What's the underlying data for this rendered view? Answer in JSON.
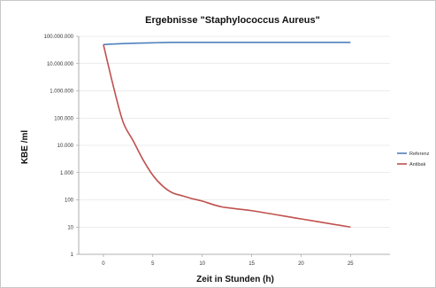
{
  "chart_data": {
    "type": "line",
    "title": "Ergebnisse \"Staphylococcus Aureus\"",
    "xlabel": "Zeit in Stunden (h)",
    "ylabel": "KBE /ml",
    "xlim": [
      -2.5,
      29
    ],
    "ylim": [
      1,
      100000000
    ],
    "yscale": "log",
    "x_ticks": [
      "0",
      "5",
      "10",
      "15",
      "20",
      "25"
    ],
    "y_ticks": [
      "1",
      "10",
      "100",
      "1.000",
      "10.000",
      "100.000",
      "1.000.000",
      "10.000.000",
      "100.000.000"
    ],
    "grid": "horizontal",
    "legend_position": "right",
    "series": [
      {
        "name": "Referenz",
        "color": "#4f81bd",
        "x": [
          0,
          2,
          5,
          7,
          10,
          15,
          20,
          25
        ],
        "y": [
          50000000,
          54000000,
          58000000,
          60000000,
          60000000,
          60000000,
          60000000,
          60000000
        ]
      },
      {
        "name": "Antibak",
        "color": "#c0504d",
        "x": [
          0,
          1,
          2,
          3,
          4,
          5,
          6,
          7,
          8,
          9,
          10,
          12,
          15,
          20,
          25
        ],
        "y": [
          50000000,
          1500000,
          70000,
          15000,
          3000,
          800,
          320,
          180,
          140,
          110,
          90,
          55,
          40,
          20,
          10
        ]
      }
    ]
  }
}
